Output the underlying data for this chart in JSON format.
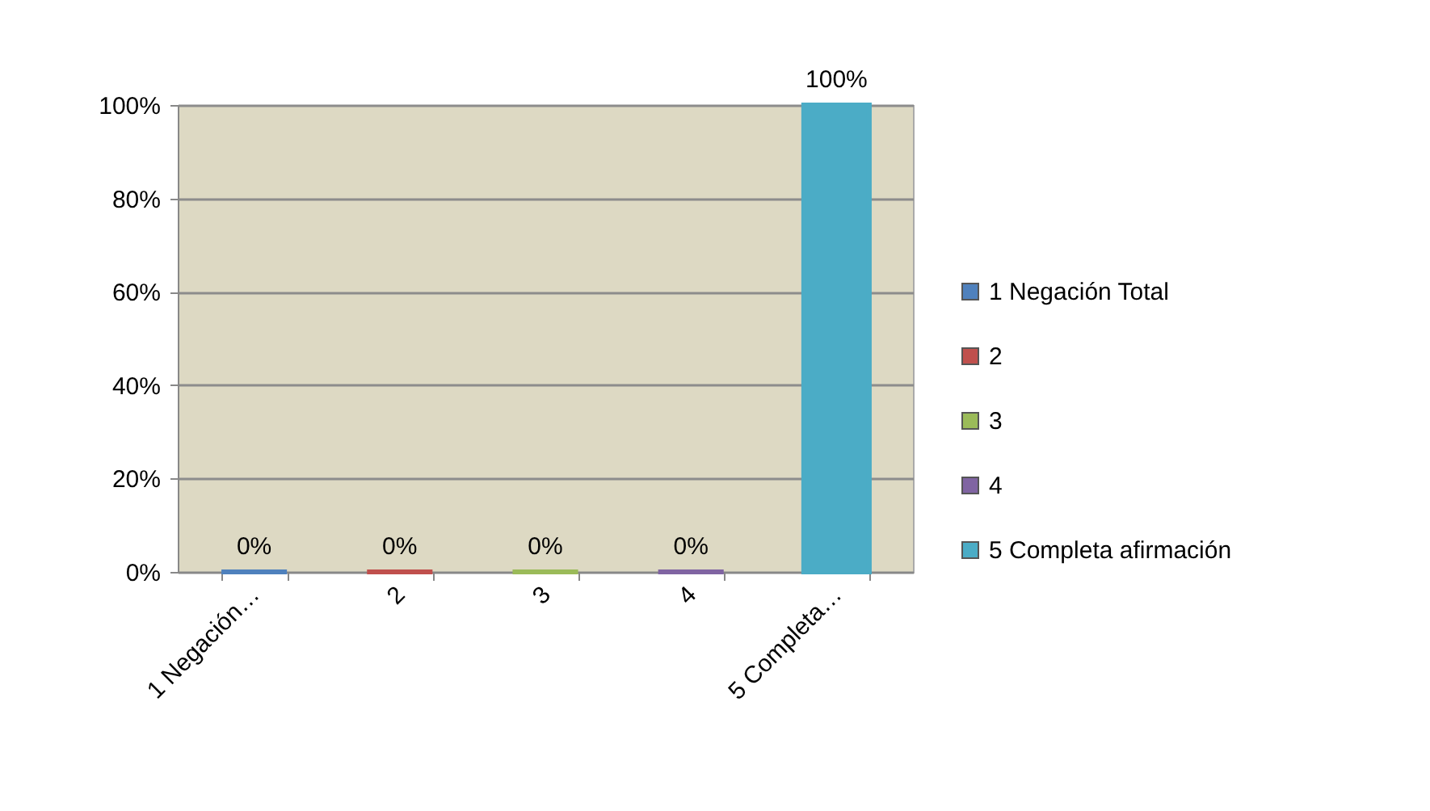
{
  "chart_data": {
    "type": "bar",
    "stacked": true,
    "categories": [
      "1 Negación…",
      "2",
      "3",
      "4",
      "5 Completa…"
    ],
    "series": [
      {
        "name": "1 Negación Total",
        "color": "#4f81bd",
        "values": [
          0,
          null,
          null,
          null,
          null
        ],
        "value_labels": [
          "0%",
          null,
          null,
          null,
          null
        ]
      },
      {
        "name": "2",
        "color": "#c0504d",
        "values": [
          null,
          0,
          null,
          null,
          null
        ],
        "value_labels": [
          null,
          "0%",
          null,
          null,
          null
        ]
      },
      {
        "name": "3",
        "color": "#9bbb59",
        "values": [
          null,
          null,
          0,
          null,
          null
        ],
        "value_labels": [
          null,
          null,
          "0%",
          null,
          null
        ]
      },
      {
        "name": "4",
        "color": "#8064a2",
        "values": [
          null,
          null,
          null,
          0,
          null
        ],
        "value_labels": [
          null,
          null,
          null,
          "0%",
          null
        ]
      },
      {
        "name": "5 Completa afirmación",
        "color": "#4bacc6",
        "values": [
          null,
          null,
          null,
          null,
          100
        ],
        "value_labels": [
          null,
          null,
          null,
          null,
          "100%"
        ]
      }
    ],
    "ylim": [
      0,
      100
    ],
    "yticks": [
      {
        "value": 0,
        "label": "0%"
      },
      {
        "value": 20,
        "label": "20%"
      },
      {
        "value": 40,
        "label": "40%"
      },
      {
        "value": 60,
        "label": "60%"
      },
      {
        "value": 80,
        "label": "80%"
      },
      {
        "value": 100,
        "label": "100%"
      }
    ],
    "grid": "y",
    "legend": "right"
  }
}
